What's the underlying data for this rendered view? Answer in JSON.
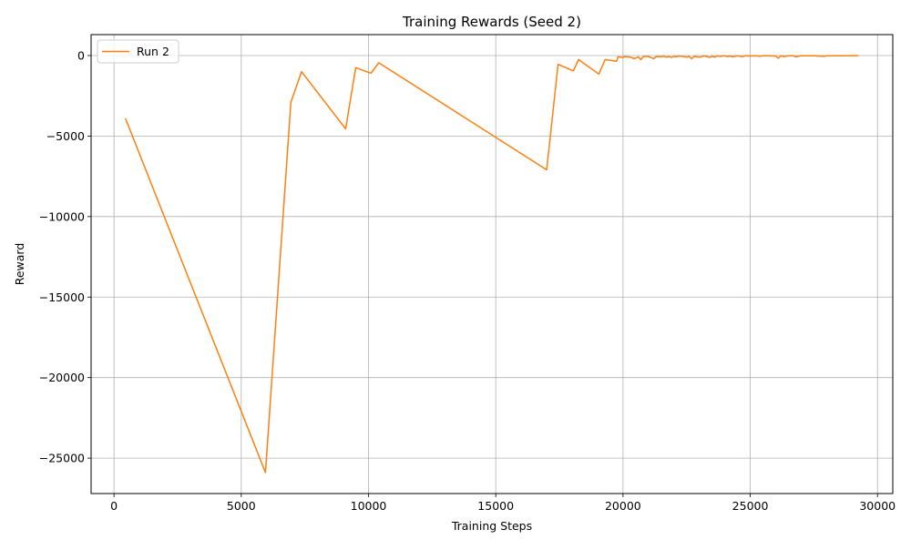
{
  "chart_data": {
    "type": "line",
    "title": "Training Rewards (Seed 2)",
    "xlabel": "Training Steps",
    "ylabel": "Reward",
    "xlim": [
      -900,
      30600
    ],
    "ylim": [
      -27200,
      1300
    ],
    "xticks": [
      0,
      5000,
      10000,
      15000,
      20000,
      25000,
      30000
    ],
    "xtick_labels": [
      "0",
      "5000",
      "10000",
      "15000",
      "20000",
      "25000",
      "30000"
    ],
    "yticks": [
      0,
      -5000,
      -10000,
      -15000,
      -20000,
      -25000
    ],
    "ytick_labels": [
      "0",
      "−5000",
      "−10000",
      "−15000",
      "−20000",
      "−25000"
    ],
    "grid": true,
    "legend_position": "top-left",
    "series": [
      {
        "name": "Run 2",
        "color": "#ff7f0e",
        "x": [
          450,
          5950,
          6950,
          7370,
          9100,
          9500,
          10100,
          10400,
          17000,
          17450,
          18050,
          18250,
          19050,
          19300,
          19750,
          19800,
          20000,
          20050,
          20300,
          20450,
          20600,
          20700,
          20800,
          21000,
          21200,
          21300,
          21500,
          21600,
          21700,
          21800,
          21900,
          22000,
          22100,
          22200,
          22400,
          22500,
          22600,
          22700,
          22800,
          22900,
          23000,
          23200,
          23300,
          23400,
          23500,
          23600,
          23700,
          23800,
          24000,
          24100,
          24200,
          24300,
          24500,
          24600,
          24700,
          24800,
          25000,
          25200,
          25400,
          25500,
          25700,
          26000,
          26100,
          26200,
          26300,
          26500,
          26700,
          26800,
          27000,
          27500,
          27900,
          28000,
          28500,
          29000,
          29250
        ],
        "y": [
          -3900,
          -25900,
          -2900,
          -1000,
          -4550,
          -750,
          -1100,
          -450,
          -7100,
          -550,
          -950,
          -250,
          -1150,
          -250,
          -350,
          -80,
          -120,
          -60,
          -100,
          -200,
          -80,
          -250,
          -60,
          -50,
          -200,
          -60,
          -80,
          -40,
          -100,
          -60,
          -120,
          -50,
          -80,
          -30,
          -60,
          -100,
          -50,
          -200,
          -40,
          -80,
          -100,
          -30,
          -60,
          -120,
          -40,
          -100,
          -30,
          -50,
          -20,
          -60,
          -30,
          -80,
          -20,
          -40,
          -70,
          -20,
          -30,
          -20,
          -40,
          -15,
          -20,
          -30,
          -170,
          -20,
          -60,
          -15,
          -20,
          -80,
          -10,
          -20,
          -50,
          -10,
          -10,
          -5,
          -5
        ]
      }
    ]
  }
}
